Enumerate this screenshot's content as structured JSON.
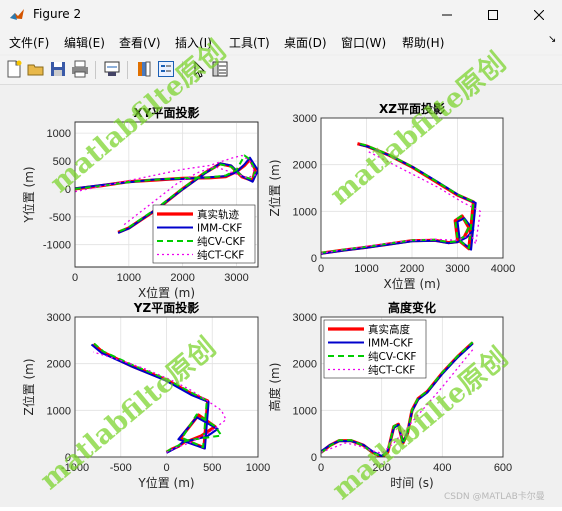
{
  "window": {
    "title": "Figure 2"
  },
  "menu": [
    "文件(F)",
    "编辑(E)",
    "查看(V)",
    "插入(I)",
    "工具(T)",
    "桌面(D)",
    "窗口(W)",
    "帮助(H)"
  ],
  "menu_arrow": "↘",
  "watermark_text": "matlabfilte原创",
  "credit": "CSDN @MATLAB卡尔曼",
  "chart_data": [
    {
      "type": "line",
      "title": "XY平面投影",
      "xlabel": "X位置 (m)",
      "ylabel": "Y位置 (m)",
      "xlim": [
        0,
        3400
      ],
      "ylim": [
        -1400,
        1200
      ],
      "xticks": [
        0,
        1000,
        2000,
        3000
      ],
      "yticks": [
        -1000,
        -500,
        0,
        500,
        1000
      ],
      "grid": true,
      "legend": {
        "position": "bottom-right",
        "entries": [
          "真实轨迹",
          "IMM-CKF",
          "纯CV-CKF",
          "纯CT-CKF"
        ]
      },
      "series": [
        {
          "name": "真实轨迹",
          "x": [
            0,
            500,
            1000,
            1500,
            2000,
            2500,
            2800,
            3000,
            3150,
            3250,
            3350,
            3300,
            3100,
            2900,
            2700,
            2400,
            2000,
            1500,
            1000,
            800
          ],
          "y": [
            0,
            60,
            130,
            160,
            190,
            200,
            220,
            310,
            420,
            530,
            350,
            150,
            220,
            410,
            450,
            280,
            0,
            -380,
            -700,
            -780
          ]
        },
        {
          "name": "IMM-CKF",
          "x": [
            0,
            500,
            1000,
            1500,
            2000,
            2500,
            2800,
            3000,
            3150,
            3250,
            3400,
            3300,
            3100,
            2900,
            2700,
            2400,
            2000,
            1500,
            1000,
            800
          ],
          "y": [
            10,
            70,
            120,
            170,
            180,
            210,
            230,
            300,
            440,
            560,
            330,
            130,
            230,
            420,
            460,
            270,
            -10,
            -370,
            -710,
            -790
          ]
        },
        {
          "name": "纯CV-CKF",
          "x": [
            0,
            500,
            1000,
            1500,
            2000,
            2500,
            2800,
            3000,
            3150,
            3250,
            3350,
            3300,
            3100,
            2900,
            2700,
            2400,
            2000,
            1500,
            1000,
            800
          ],
          "y": [
            0,
            55,
            125,
            165,
            195,
            205,
            240,
            340,
            600,
            530,
            330,
            170,
            230,
            400,
            440,
            290,
            10,
            -360,
            -690,
            -770
          ]
        },
        {
          "name": "纯CT-CKF",
          "x": [
            0,
            500,
            1000,
            1500,
            2000,
            2500,
            2900,
            3100,
            3250,
            3350,
            3200,
            2900,
            2600,
            2300,
            1900,
            1500,
            1100,
            900
          ],
          "y": [
            -50,
            50,
            150,
            250,
            350,
            420,
            550,
            600,
            500,
            250,
            200,
            300,
            400,
            300,
            100,
            -200,
            -500,
            -650
          ]
        }
      ]
    },
    {
      "type": "line",
      "title": "XZ平面投影",
      "xlabel": "X位置 (m)",
      "ylabel": "Z位置 (m)",
      "xlim": [
        0,
        4000
      ],
      "ylim": [
        0,
        3000
      ],
      "xticks": [
        0,
        1000,
        2000,
        3000,
        4000
      ],
      "yticks": [
        0,
        1000,
        2000,
        3000
      ],
      "grid": true,
      "series": [
        {
          "name": "真实轨迹",
          "x": [
            0,
            500,
            1000,
            1500,
            2000,
            2500,
            2800,
            3000,
            3150,
            3250,
            3100,
            2950,
            3000,
            3250,
            3350,
            3000,
            2500,
            2000,
            1500,
            1000,
            800
          ],
          "y": [
            100,
            170,
            230,
            300,
            370,
            380,
            330,
            350,
            450,
            650,
            900,
            800,
            400,
            200,
            1200,
            1350,
            1650,
            1950,
            2200,
            2400,
            2450
          ]
        },
        {
          "name": "IMM-CKF",
          "x": [
            0,
            500,
            1000,
            1500,
            2000,
            2500,
            2800,
            3000,
            3200,
            3350,
            3150,
            3000,
            3050,
            3300,
            3400,
            3050,
            2550,
            2050,
            1550,
            1050,
            850
          ],
          "y": [
            90,
            160,
            220,
            290,
            360,
            370,
            320,
            340,
            440,
            600,
            850,
            780,
            380,
            180,
            1180,
            1330,
            1640,
            1930,
            2180,
            2380,
            2430
          ]
        },
        {
          "name": "纯CV-CKF",
          "x": [
            0,
            500,
            1000,
            1500,
            2000,
            2500,
            2800,
            3000,
            3150,
            3250,
            3100,
            2950,
            3000,
            3250,
            3350,
            3000,
            2500,
            2000,
            1500,
            1000,
            800
          ],
          "y": [
            110,
            180,
            240,
            310,
            380,
            390,
            340,
            360,
            460,
            660,
            910,
            810,
            410,
            210,
            1210,
            1360,
            1660,
            1960,
            2210,
            2410,
            2460
          ]
        },
        {
          "name": "纯CT-CKF",
          "x": [
            0,
            500,
            1000,
            1500,
            2000,
            2500,
            3000,
            3300,
            3400,
            3500,
            3100,
            2600,
            2100,
            1600,
            1200,
            1000
          ],
          "y": [
            100,
            180,
            250,
            320,
            380,
            400,
            380,
            500,
            300,
            1000,
            1200,
            1500,
            1750,
            2000,
            2200,
            2300
          ]
        }
      ]
    },
    {
      "type": "line",
      "title": "YZ平面投影",
      "xlabel": "Y位置 (m)",
      "ylabel": "Z位置 (m)",
      "xlim": [
        -1000,
        1000
      ],
      "ylim": [
        0,
        3000
      ],
      "xticks": [
        -1000,
        -500,
        0,
        500,
        1000
      ],
      "yticks": [
        0,
        1000,
        2000,
        3000
      ],
      "grid": true,
      "series": [
        {
          "name": "真实轨迹",
          "x": [
            0,
            60,
            130,
            200,
            250,
            380,
            530,
            350,
            150,
            410,
            450,
            280,
            0,
            -380,
            -700,
            -800
          ],
          "y": [
            100,
            170,
            230,
            330,
            350,
            450,
            650,
            900,
            400,
            200,
            1200,
            1350,
            1650,
            1950,
            2250,
            2420
          ]
        },
        {
          "name": "IMM-CKF",
          "x": [
            0,
            70,
            120,
            180,
            230,
            440,
            560,
            330,
            130,
            420,
            460,
            270,
            -10,
            -370,
            -710,
            -820
          ],
          "y": [
            90,
            160,
            220,
            320,
            340,
            440,
            600,
            850,
            380,
            180,
            1180,
            1330,
            1640,
            1930,
            2230,
            2410
          ]
        },
        {
          "name": "纯CV-CKF",
          "x": [
            0,
            55,
            125,
            205,
            240,
            600,
            530,
            330,
            170,
            400,
            440,
            290,
            10,
            -360,
            -690,
            -790
          ],
          "y": [
            110,
            180,
            240,
            340,
            360,
            460,
            660,
            910,
            410,
            210,
            1210,
            1360,
            1660,
            1960,
            2260,
            2430
          ]
        },
        {
          "name": "纯CT-CKF",
          "x": [
            0,
            100,
            250,
            450,
            650,
            600,
            450,
            250,
            50,
            -250,
            -550,
            -800
          ],
          "y": [
            100,
            200,
            300,
            500,
            800,
            1000,
            1200,
            1450,
            1650,
            1900,
            2100,
            2250
          ]
        }
      ]
    },
    {
      "type": "line",
      "title": "高度变化",
      "xlabel": "时间 (s)",
      "ylabel": "高度 (m)",
      "xlim": [
        0,
        600
      ],
      "ylim": [
        0,
        3000
      ],
      "xticks": [
        0,
        200,
        400,
        600
      ],
      "yticks": [
        0,
        1000,
        2000,
        3000
      ],
      "grid": true,
      "legend": {
        "position": "top-left",
        "entries": [
          "真实高度",
          "IMM-CKF",
          "纯CV-CKF",
          "纯CT-CKF"
        ]
      },
      "series": [
        {
          "name": "真实高度",
          "x": [
            0,
            30,
            60,
            100,
            140,
            170,
            200,
            220,
            240,
            255,
            270,
            285,
            300,
            320,
            350,
            400,
            450,
            500
          ],
          "y": [
            100,
            250,
            350,
            350,
            250,
            100,
            0,
            100,
            650,
            700,
            300,
            500,
            1000,
            1250,
            1400,
            1800,
            2150,
            2450
          ]
        },
        {
          "name": "IMM-CKF",
          "x": [
            0,
            30,
            60,
            100,
            140,
            170,
            200,
            220,
            240,
            255,
            270,
            285,
            300,
            320,
            350,
            400,
            450,
            500
          ],
          "y": [
            120,
            260,
            340,
            340,
            260,
            120,
            20,
            130,
            620,
            690,
            320,
            520,
            980,
            1230,
            1380,
            1780,
            2130,
            2430
          ]
        },
        {
          "name": "纯CV-CKF",
          "x": [
            0,
            30,
            60,
            100,
            140,
            170,
            200,
            220,
            240,
            255,
            270,
            285,
            300,
            320,
            350,
            400,
            450,
            500
          ],
          "y": [
            90,
            240,
            360,
            360,
            240,
            90,
            10,
            110,
            660,
            710,
            290,
            490,
            1010,
            1260,
            1410,
            1810,
            2160,
            2460
          ]
        },
        {
          "name": "纯CT-CKF",
          "x": [
            0,
            40,
            80,
            120,
            160,
            200,
            240,
            280,
            320,
            360,
            400,
            450,
            500
          ],
          "y": [
            100,
            200,
            300,
            250,
            150,
            80,
            300,
            600,
            900,
            1200,
            1500,
            1900,
            2300
          ]
        }
      ]
    }
  ],
  "colors": {
    "true": "#ff0000",
    "imm": "#0000cc",
    "cv": "#00cc00",
    "ct": "#ee00ee",
    "watermark": "#78d228"
  }
}
